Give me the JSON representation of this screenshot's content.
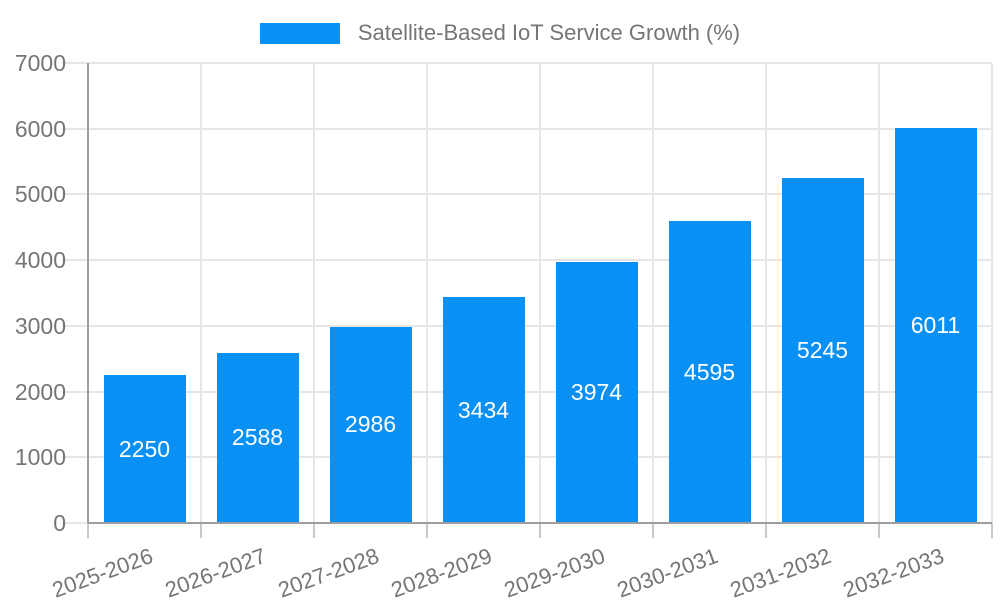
{
  "legend": {
    "label": "Satellite-Based IoT Service Growth (%)"
  },
  "chart_data": {
    "type": "bar",
    "title": "Satellite-Based IoT Service Growth (%)",
    "categories": [
      "2025-2026",
      "2026-2027",
      "2027-2028",
      "2028-2029",
      "2029-2030",
      "2030-2031",
      "2031-2032",
      "2032-2033"
    ],
    "values": [
      2250,
      2588,
      2986,
      3434,
      3974,
      4595,
      5245,
      6011
    ],
    "bar_value_labels": [
      "2250",
      "2588",
      "2986",
      "3434",
      "3974",
      "4595",
      "5245",
      "6011"
    ],
    "xlabel": "",
    "ylabel": "",
    "ylim": [
      0,
      7000
    ],
    "ytick_step": 1000,
    "yticks": [
      "0",
      "1000",
      "2000",
      "3000",
      "4000",
      "5000",
      "6000",
      "7000"
    ],
    "grid": "on",
    "legend_position": "top-center",
    "value_label_position": "centered-inside-bar",
    "colors": {
      "bar": "#0890f5",
      "grid": "#e6e6e6",
      "axis": "#9e9e9e",
      "text": "#757575",
      "value_label": "#ffffff",
      "background": "#ffffff"
    }
  }
}
